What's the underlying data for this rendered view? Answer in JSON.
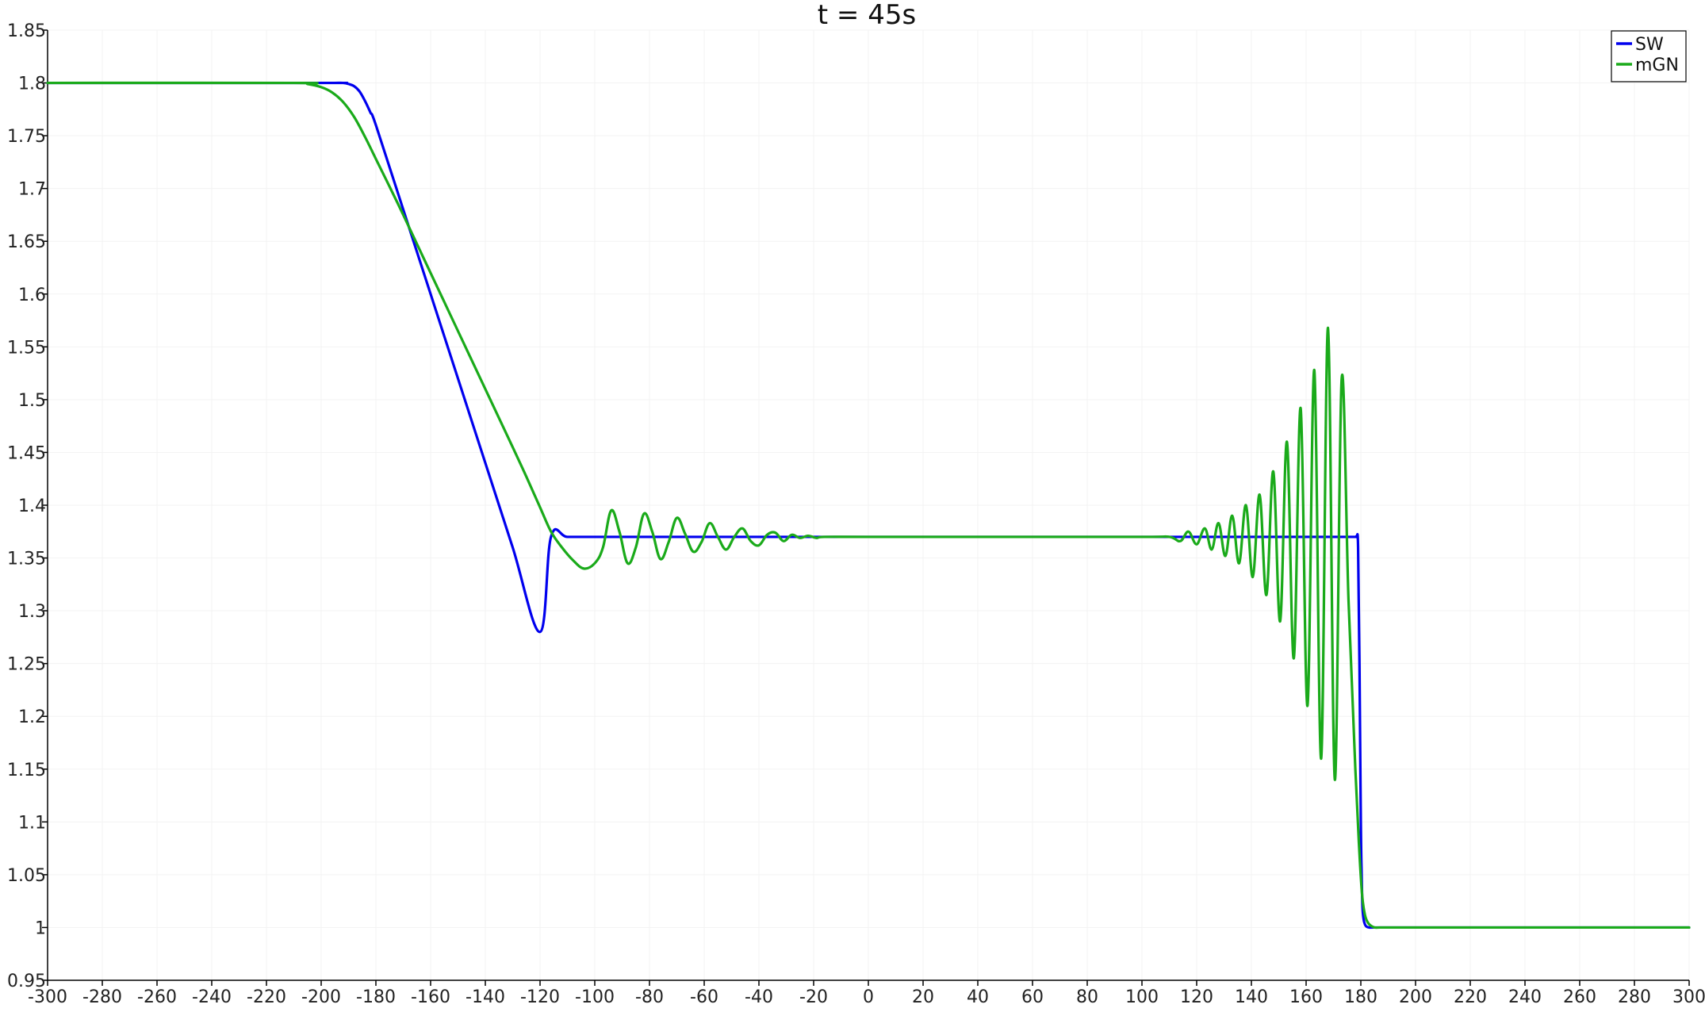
{
  "chart_data": {
    "type": "line",
    "title": "t = 45s",
    "xlabel": "",
    "ylabel": "",
    "xlim": [
      -300,
      300
    ],
    "ylim": [
      0.95,
      1.85
    ],
    "xticks": [
      -300,
      -280,
      -260,
      -240,
      -220,
      -200,
      -180,
      -160,
      -140,
      -120,
      -100,
      -80,
      -60,
      -40,
      -20,
      0,
      20,
      40,
      60,
      80,
      100,
      120,
      140,
      160,
      180,
      200,
      220,
      240,
      260,
      280,
      300
    ],
    "yticks": [
      0.95,
      1,
      1.05,
      1.1,
      1.15,
      1.2,
      1.25,
      1.3,
      1.35,
      1.4,
      1.45,
      1.5,
      1.55,
      1.6,
      1.65,
      1.7,
      1.75,
      1.8,
      1.85
    ],
    "ytick_labels": [
      "0.95",
      "1",
      "1.05",
      "1.1",
      "1.15",
      "1.2",
      "1.25",
      "1.3",
      "1.35",
      "1.4",
      "1.45",
      "1.5",
      "1.55",
      "1.6",
      "1.65",
      "1.7",
      "1.75",
      "1.8",
      "1.85"
    ],
    "grid": true,
    "legend_position": "top-right",
    "series": [
      {
        "name": "SW",
        "color": "#0000ee",
        "x": [
          -300,
          -200,
          -195,
          -192,
          -190,
          -188,
          -186,
          -184,
          -182,
          -180,
          -170,
          -160,
          -150,
          -140,
          -130,
          -120,
          -116,
          -110,
          -100,
          -80,
          -50,
          0,
          50,
          100,
          150,
          175,
          178,
          178.5,
          179,
          179.5,
          180,
          180.3,
          180.6,
          181,
          181.5,
          182,
          183,
          185,
          200,
          250,
          300
        ],
        "y": [
          1.8,
          1.8,
          1.8,
          1.8,
          1.799,
          1.797,
          1.792,
          1.783,
          1.772,
          1.76,
          1.68,
          1.6,
          1.52,
          1.44,
          1.36,
          1.28,
          1.37,
          1.37,
          1.37,
          1.37,
          1.37,
          1.37,
          1.37,
          1.37,
          1.37,
          1.37,
          1.37,
          1.37,
          1.36,
          1.25,
          1.1,
          1.05,
          1.02,
          1.008,
          1.003,
          1.001,
          1.0,
          1.0,
          1.0,
          1.0,
          1.0
        ]
      },
      {
        "name": "mGN",
        "color": "#1aaa1a",
        "x": [
          -300,
          -210,
          -205,
          -200,
          -196,
          -192,
          -188,
          -184,
          -180,
          -176,
          -170,
          -160,
          -150,
          -140,
          -130,
          -125,
          -120,
          -116,
          -112,
          -108,
          -104,
          -100,
          -97,
          -94,
          -91,
          -88,
          -85,
          -82,
          -79,
          -76,
          -73,
          -70,
          -67,
          -64,
          -61,
          -58,
          -55,
          -52,
          -49,
          -46,
          -43,
          -40,
          -37,
          -34,
          -31,
          -28,
          -25,
          -22,
          -19,
          -16,
          0,
          50,
          100,
          110,
          114,
          117,
          120,
          123,
          125.5,
          128,
          130.5,
          133,
          135.5,
          138,
          140.5,
          143,
          145.5,
          148,
          150.5,
          153,
          155.5,
          158,
          160.5,
          163,
          165.5,
          168,
          170.5,
          173,
          175.5,
          178,
          179.5,
          180.5,
          181.5,
          182.5,
          183.5,
          185,
          187,
          190,
          200,
          250,
          300
        ],
        "y": [
          1.8,
          1.8,
          1.799,
          1.796,
          1.791,
          1.782,
          1.768,
          1.749,
          1.728,
          1.707,
          1.675,
          1.62,
          1.565,
          1.51,
          1.455,
          1.427,
          1.398,
          1.375,
          1.36,
          1.348,
          1.34,
          1.345,
          1.36,
          1.395,
          1.375,
          1.345,
          1.36,
          1.392,
          1.375,
          1.349,
          1.365,
          1.388,
          1.373,
          1.356,
          1.365,
          1.383,
          1.37,
          1.358,
          1.37,
          1.378,
          1.366,
          1.362,
          1.372,
          1.374,
          1.366,
          1.372,
          1.369,
          1.371,
          1.369,
          1.37,
          1.37,
          1.37,
          1.37,
          1.37,
          1.366,
          1.375,
          1.363,
          1.378,
          1.358,
          1.383,
          1.352,
          1.39,
          1.345,
          1.4,
          1.332,
          1.41,
          1.315,
          1.432,
          1.29,
          1.46,
          1.255,
          1.492,
          1.21,
          1.528,
          1.16,
          1.568,
          1.14,
          1.52,
          1.31,
          1.15,
          1.07,
          1.03,
          1.012,
          1.005,
          1.002,
          1.0,
          1.0,
          1.0,
          1.0,
          1.0,
          1.0
        ]
      }
    ]
  }
}
